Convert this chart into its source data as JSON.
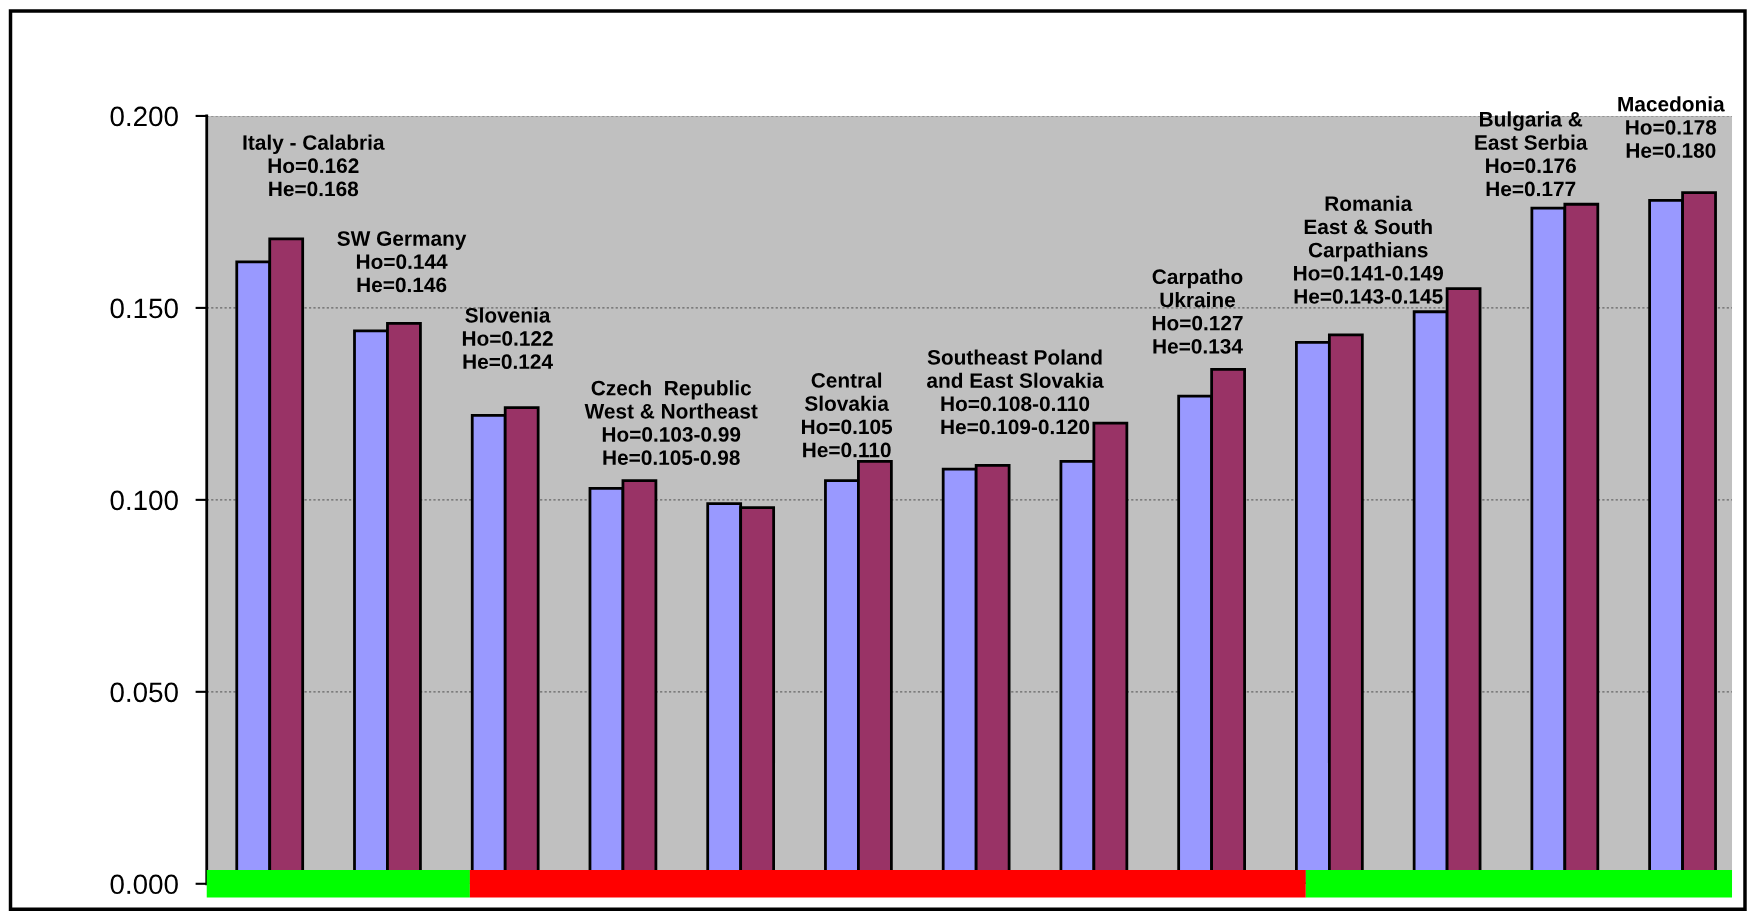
{
  "chart_data": {
    "type": "bar",
    "categories": [
      null,
      null,
      null,
      null,
      null,
      null,
      null,
      null,
      null,
      null,
      null,
      null,
      null
    ],
    "series": [
      {
        "color": "#9999ff",
        "values": [
          0.162,
          0.144,
          0.122,
          0.103,
          0.099,
          0.105,
          0.108,
          0.11,
          0.127,
          0.141,
          0.149,
          0.176,
          0.178
        ]
      },
      {
        "color": "#993366",
        "values": [
          0.168,
          0.146,
          0.124,
          0.105,
          0.098,
          0.11,
          0.109,
          0.12,
          0.134,
          0.143,
          0.155,
          0.177,
          0.18
        ]
      }
    ],
    "ylim": [
      0,
      0.2
    ],
    "yticks": [
      {
        "value": 0,
        "label": "0.000"
      },
      {
        "value": 0.05,
        "label": "0.050"
      },
      {
        "value": 0.1,
        "label": "0.100"
      },
      {
        "value": 0.15,
        "label": "0.150"
      },
      {
        "value": 0.2,
        "label": "0.200"
      }
    ],
    "tick_labels": "y",
    "grid": "y",
    "annotations": [
      "Italy - Calabria\nHo=0.162\nHe=0.168",
      "SW Germany\nHo=0.144\nHe=0.146",
      "Slovenia\nHo=0.122\nHe=0.124",
      "Czech  Republic\nWest & Northeast\nHo=0.103-0.99\nHe=0.105-0.98",
      "Central\nSlovakia\nHo=0.105\nHe=0.110",
      "Southeast Poland\nand East Slovakia\nHo=0.108-0.110\nHe=0.109-0.120",
      "Carpatho\nUkraine\nHo=0.127\nHe=0.134",
      "Romania\nEast & South\nCarpathians\nHo=0.141-0.149\nHe=0.143-0.145",
      "Bulgaria &\nEast Serbia\nHo=0.176\nHe=0.177",
      "Macedonia\nHo=0.178\nHe=0.180"
    ]
  }
}
